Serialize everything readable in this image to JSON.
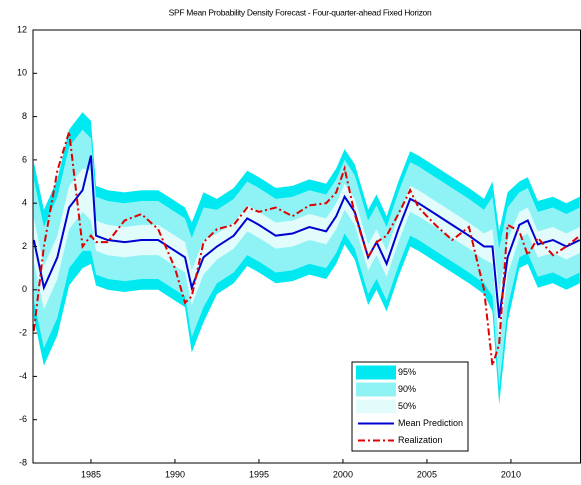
{
  "chart_data": {
    "type": "fan",
    "title": "SPF Mean Probability Density Forecast - Four-quarter-ahead Fixed Horizon",
    "xlim": [
      1981.55,
      2014.17
    ],
    "xticks": [
      1985,
      1990,
      1995,
      2000,
      2005,
      2010
    ],
    "ylim": [
      -8,
      12
    ],
    "yticks": [
      -8,
      -6,
      -4,
      -2,
      0,
      2,
      4,
      6,
      8,
      10,
      12
    ],
    "x": [
      1981.6,
      1982.2,
      1983.0,
      1983.7,
      1984.5,
      1985.0,
      1985.3,
      1986.0,
      1987.0,
      1988.0,
      1989.0,
      1990.0,
      1990.6,
      1991.0,
      1991.7,
      1992.5,
      1993.5,
      1994.3,
      1995.0,
      1996.0,
      1997.0,
      1998.0,
      1999.0,
      1999.6,
      2000.1,
      2000.7,
      2001.5,
      2002.0,
      2002.6,
      2003.3,
      2004.0,
      2004.5,
      2005.5,
      2006.5,
      2007.5,
      2008.4,
      2008.9,
      2009.3,
      2009.8,
      2010.5,
      2011.0,
      2011.6,
      2012.5,
      2013.3,
      2014.1
    ],
    "bands": [
      {
        "name": "95%",
        "color": "#00e8f0",
        "lower": [
          -1.3,
          -3.5,
          -2.1,
          0.2,
          1.0,
          1.2,
          0.2,
          0.0,
          -0.1,
          0.0,
          0.0,
          -0.5,
          -0.8,
          -2.9,
          -1.5,
          -0.2,
          0.3,
          1.1,
          0.8,
          0.3,
          0.4,
          0.7,
          0.5,
          1.2,
          2.1,
          1.4,
          -0.7,
          0.0,
          -1.0,
          0.6,
          2.0,
          1.8,
          1.3,
          0.8,
          0.3,
          -0.2,
          -1.0,
          -5.3,
          -1.5,
          1.0,
          1.2,
          0.1,
          0.3,
          0.0,
          0.3
        ],
        "upper": [
          5.9,
          3.7,
          5.1,
          7.4,
          8.2,
          7.8,
          4.8,
          4.6,
          4.5,
          4.6,
          4.6,
          4.1,
          3.8,
          3.1,
          4.5,
          4.2,
          4.7,
          5.5,
          5.2,
          4.7,
          4.8,
          5.1,
          4.9,
          5.6,
          6.5,
          5.8,
          3.7,
          4.4,
          3.4,
          5.0,
          6.4,
          6.2,
          5.7,
          5.2,
          4.7,
          4.2,
          5.0,
          2.7,
          4.5,
          5.0,
          5.2,
          4.1,
          4.3,
          4.0,
          4.3
        ]
      },
      {
        "name": "90%",
        "color": "#8ff3f6",
        "lower": [
          -0.5,
          -2.7,
          -1.3,
          1.0,
          1.8,
          1.8,
          0.7,
          0.5,
          0.4,
          0.5,
          0.5,
          0.0,
          -0.3,
          -2.2,
          -0.8,
          0.3,
          0.8,
          1.6,
          1.3,
          0.8,
          0.9,
          1.2,
          1.0,
          1.7,
          2.6,
          1.9,
          -0.2,
          0.5,
          -0.5,
          1.1,
          2.5,
          2.3,
          1.8,
          1.3,
          0.8,
          0.3,
          -0.3,
          -4.5,
          -0.8,
          1.5,
          1.7,
          0.6,
          0.8,
          0.5,
          0.8
        ],
        "upper": [
          5.1,
          2.9,
          4.3,
          6.6,
          7.4,
          7.0,
          4.3,
          4.1,
          4.0,
          4.1,
          4.1,
          3.6,
          3.3,
          2.4,
          3.8,
          3.7,
          4.2,
          5.0,
          4.7,
          4.2,
          4.3,
          4.6,
          4.4,
          5.1,
          6.0,
          5.3,
          3.2,
          3.9,
          2.9,
          4.5,
          5.9,
          5.7,
          5.2,
          4.7,
          4.2,
          3.7,
          4.3,
          1.9,
          3.8,
          4.5,
          4.7,
          3.6,
          3.8,
          3.5,
          3.8
        ]
      },
      {
        "name": "50%",
        "color": "#e2fcfc",
        "lower": [
          1.3,
          -0.9,
          0.5,
          2.8,
          3.6,
          3.2,
          1.8,
          1.6,
          1.5,
          1.6,
          1.6,
          1.1,
          0.8,
          -0.7,
          0.7,
          1.4,
          1.9,
          2.7,
          2.4,
          1.9,
          2.0,
          2.3,
          2.1,
          2.8,
          3.7,
          3.0,
          0.9,
          1.6,
          0.6,
          2.2,
          3.6,
          3.4,
          2.9,
          2.4,
          1.9,
          1.4,
          1.2,
          -2.5,
          0.7,
          2.4,
          2.6,
          1.5,
          1.7,
          1.4,
          1.7
        ],
        "upper": [
          3.3,
          1.1,
          2.5,
          4.8,
          5.6,
          5.5,
          3.2,
          3.0,
          2.9,
          3.0,
          3.0,
          2.5,
          2.2,
          0.9,
          2.3,
          2.6,
          3.1,
          3.9,
          3.6,
          3.1,
          3.2,
          3.5,
          3.3,
          4.0,
          4.9,
          4.2,
          2.1,
          2.8,
          1.8,
          3.4,
          4.8,
          4.6,
          4.1,
          3.6,
          3.1,
          2.6,
          2.8,
          -0.1,
          2.3,
          3.6,
          3.8,
          2.7,
          2.9,
          2.6,
          2.9
        ]
      }
    ],
    "series": [
      {
        "name": "Mean Prediction",
        "color": "#0000d0",
        "dash": "solid",
        "values": [
          2.3,
          0.1,
          1.5,
          3.8,
          4.6,
          6.2,
          2.5,
          2.3,
          2.2,
          2.3,
          2.3,
          1.8,
          1.5,
          0.1,
          1.5,
          2.0,
          2.5,
          3.3,
          3.0,
          2.5,
          2.6,
          2.9,
          2.7,
          3.4,
          4.3,
          3.6,
          1.5,
          2.2,
          1.2,
          2.8,
          4.2,
          4.0,
          3.5,
          3.0,
          2.5,
          2.0,
          2.0,
          -1.3,
          1.5,
          3.0,
          3.2,
          2.1,
          2.3,
          2.0,
          2.3
        ]
      },
      {
        "name": "Realization",
        "color": "#e00000",
        "dash": "dashdot",
        "values": [
          -1.9,
          2.0,
          5.5,
          7.3,
          2.0,
          2.5,
          2.2,
          2.2,
          3.2,
          3.5,
          2.8,
          1.0,
          -0.6,
          -0.3,
          2.2,
          2.8,
          3.0,
          3.8,
          3.6,
          3.8,
          3.4,
          3.9,
          4.0,
          4.5,
          5.6,
          3.5,
          1.5,
          2.2,
          2.5,
          3.5,
          4.6,
          3.8,
          3.0,
          2.3,
          2.9,
          0.0,
          -3.5,
          -2.5,
          3.0,
          2.7,
          1.6,
          2.4,
          1.6,
          2.0,
          2.5
        ]
      }
    ],
    "legend": "lower-right"
  }
}
